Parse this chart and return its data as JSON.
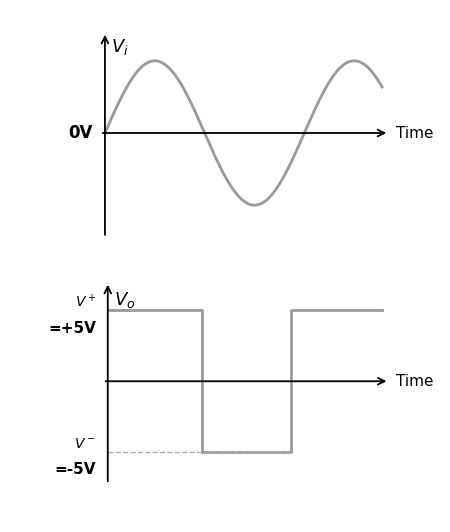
{
  "fig_width": 4.5,
  "fig_height": 5.32,
  "dpi": 100,
  "bg_color": "#ffffff",
  "sine_color": "#999999",
  "sine_linewidth": 2.0,
  "square_color": "#999999",
  "square_linewidth": 2.0,
  "axis_color": "#000000",
  "axis_linewidth": 1.3,
  "dashed_color": "#aaaaaa",
  "dashed_linewidth": 1.0,
  "top_title": "$V_i$",
  "bottom_title": "$V_o$",
  "top_xlabel": "Time",
  "bottom_xlabel": "Time",
  "ov_label": "0V",
  "font_size_tick_label": 11,
  "font_size_title": 13,
  "font_size_vplus": 10,
  "font_size_vminus": 10
}
